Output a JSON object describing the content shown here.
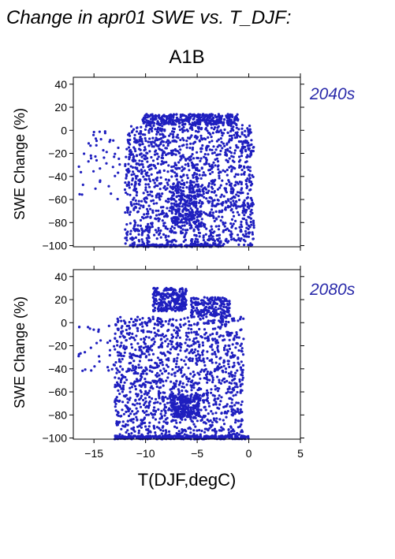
{
  "header": "Change in apr01 SWE vs. T_DJF:",
  "scenario": "A1B",
  "colors": {
    "points": "#1f1fbf",
    "period_label": "#2a2aaa",
    "axes": "#000000"
  },
  "chart_data": [
    {
      "type": "scatter",
      "panel_label": "2040s",
      "ylabel": "SWE Change (%)",
      "xlim": [
        -17,
        5
      ],
      "ylim": [
        -101,
        46
      ],
      "xticks": [
        -15,
        -10,
        -5,
        0,
        5
      ],
      "yticks": [
        -100,
        -80,
        -60,
        -40,
        -20,
        0,
        20,
        40
      ],
      "show_x_tick_labels": false,
      "grid": false,
      "clusters": [
        {
          "x_range": [
            -10.3,
            -1.0
          ],
          "y_range": [
            5,
            14
          ],
          "count": 380
        },
        {
          "x_range": [
            -12.0,
            0.5
          ],
          "y_range": [
            -100,
            5
          ],
          "count": 1500
        },
        {
          "x_range": [
            -7.5,
            -4.5
          ],
          "y_range": [
            -85,
            -45
          ],
          "count": 220
        },
        {
          "x_range": [
            -11.5,
            -2.5
          ],
          "y_range": [
            -101,
            -99
          ],
          "count": 140
        },
        {
          "x_range": [
            -16.5,
            -12.5
          ],
          "y_range": [
            -60,
            2
          ],
          "count": 45
        }
      ]
    },
    {
      "type": "scatter",
      "panel_label": "2080s",
      "ylabel": "SWE Change (%)",
      "xlabel": "T(DJF,degC)",
      "xlim": [
        -17,
        5
      ],
      "ylim": [
        -101,
        46
      ],
      "xticks": [
        -15,
        -10,
        -5,
        0,
        5
      ],
      "yticks": [
        -100,
        -80,
        -60,
        -40,
        -20,
        0,
        20,
        40
      ],
      "grid": false,
      "clusters": [
        {
          "x_range": [
            -9.3,
            -6.0
          ],
          "y_range": [
            10,
            30
          ],
          "count": 260
        },
        {
          "x_range": [
            -5.6,
            -1.8
          ],
          "y_range": [
            5,
            22
          ],
          "count": 200
        },
        {
          "x_range": [
            -13.0,
            -0.5
          ],
          "y_range": [
            -100,
            5
          ],
          "count": 1400
        },
        {
          "x_range": [
            -7.5,
            -4.8
          ],
          "y_range": [
            -82,
            -62
          ],
          "count": 220
        },
        {
          "x_range": [
            -13.0,
            0.0
          ],
          "y_range": [
            -101,
            -98
          ],
          "count": 320
        },
        {
          "x_range": [
            -16.5,
            -13.0
          ],
          "y_range": [
            -45,
            0
          ],
          "count": 30
        }
      ]
    }
  ]
}
